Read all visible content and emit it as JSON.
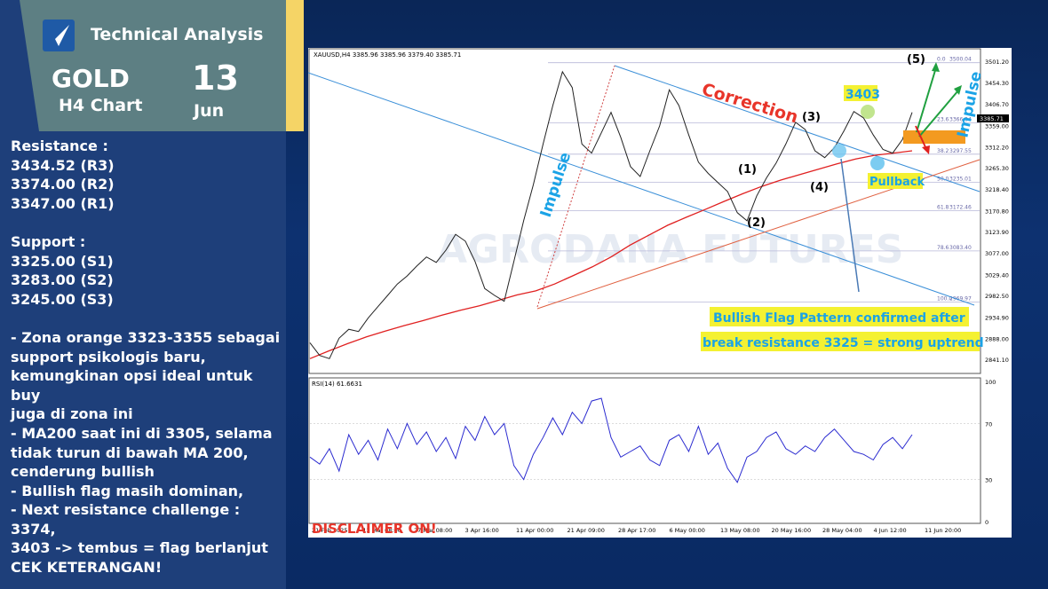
{
  "header": {
    "brand": "Technical Analysis",
    "symbol": "GOLD",
    "timeframe": "H4 Chart",
    "day": "13",
    "month": "Jun"
  },
  "notes": {
    "resistance_title": "Resistance :",
    "resistance": [
      "3434.52 (R3)",
      "3374.00 (R2)",
      "3347.00 (R1)"
    ],
    "support_title": "Support :",
    "support": [
      "3325.00 (S1)",
      "3283.00 (S2)",
      "3245.00 (S3)"
    ],
    "bullets": [
      "- Zona orange 3323-3355 sebagai",
      "support psikologis baru,",
      "kemungkinan opsi ideal untuk buy",
      "juga di zona ini",
      "- MA200 saat ini di 3305, selama",
      "tidak turun di bawah MA 200,",
      "cenderung bullish",
      "- Bullish flag masih dominan,",
      "- Next resistance challenge : 3374,",
      "3403 -> tembus = flag berlanjut",
      "CEK KETERANGAN!"
    ]
  },
  "chart_data": {
    "type": "line",
    "symbol_header": "XAUUSD,H4  3385.96 3385.96 3379.40 3385.71",
    "indicator_header": "RSI(14) 61.6631",
    "watermark": "AGRODANA FUTURES",
    "price_axis": {
      "ylim": [
        2818,
        3525
      ],
      "ticks": [
        "3501.20",
        "3454.30",
        "3406.70",
        "3359.00",
        "3312.20",
        "3265.30",
        "3218.40",
        "3170.80",
        "3123.90",
        "3077.00",
        "3029.40",
        "2982.50",
        "2934.90",
        "2888.00",
        "2841.10"
      ],
      "current_price": "3385.71"
    },
    "rsi_axis": {
      "ylim": [
        0,
        100
      ],
      "ticks": [
        "100",
        "70",
        "30",
        "0"
      ]
    },
    "x_ticks": [
      "21 Feb 2025",
      "12 Mar 08:00",
      "27 Mar 08:00",
      "3 Apr 16:00",
      "11 Apr 00:00",
      "21 Apr 09:00",
      "28 Apr 17:00",
      "6 May 00:00",
      "13 May 08:00",
      "20 May 16:00",
      "28 May 04:00",
      "4 Jun 12:00",
      "11 Jun 20:00"
    ],
    "fibonacci": [
      {
        "level": "0.0",
        "price": "3500.04",
        "value": 3500.04
      },
      {
        "level": "23.6",
        "price": "3366.94",
        "value": 3366.94
      },
      {
        "level": "38.2",
        "price": "3297.55",
        "value": 3297.55
      },
      {
        "level": "50.0",
        "price": "3235.01",
        "value": 3235.01
      },
      {
        "level": "61.8",
        "price": "3172.46",
        "value": 3172.46
      },
      {
        "level": "78.6",
        "price": "3083.40",
        "value": 3083.4
      },
      {
        "level": "100.0",
        "price": "2969.97",
        "value": 2969.97
      }
    ],
    "price_series": [
      2880,
      2852,
      2845,
      2890,
      2910,
      2905,
      2935,
      2960,
      2985,
      3010,
      3028,
      3050,
      3070,
      3058,
      3085,
      3120,
      3105,
      3060,
      3000,
      2985,
      2972,
      3060,
      3150,
      3230,
      3320,
      3405,
      3480,
      3445,
      3320,
      3300,
      3345,
      3390,
      3335,
      3270,
      3248,
      3305,
      3360,
      3440,
      3405,
      3340,
      3280,
      3255,
      3235,
      3215,
      3168,
      3150,
      3205,
      3245,
      3278,
      3320,
      3368,
      3352,
      3305,
      3290,
      3312,
      3350,
      3392,
      3378,
      3340,
      3308,
      3300,
      3330,
      3390
    ],
    "ma200": [
      2845,
      2862,
      2878,
      2893,
      2906,
      2918,
      2929,
      2941,
      2952,
      2962,
      2974,
      2986,
      2995,
      3010,
      3029,
      3048,
      3070,
      3096,
      3118,
      3140,
      3158,
      3175,
      3193,
      3210,
      3226,
      3240,
      3252,
      3264,
      3276,
      3287,
      3295,
      3300,
      3305
    ],
    "rsi_series": [
      46,
      41,
      52,
      36,
      62,
      48,
      58,
      44,
      66,
      52,
      70,
      55,
      64,
      50,
      60,
      45,
      68,
      58,
      75,
      62,
      70,
      40,
      30,
      48,
      60,
      74,
      62,
      78,
      70,
      86,
      88,
      60,
      46,
      50,
      54,
      44,
      40,
      58,
      62,
      50,
      68,
      48,
      56,
      38,
      28,
      46,
      50,
      60,
      64,
      52,
      48,
      54,
      50,
      60,
      66,
      58,
      50,
      48,
      44,
      55,
      60,
      52,
      62
    ],
    "annotations": {
      "correction": "Correction",
      "impulse": "Impulse",
      "pullback": "Pullback",
      "price_3403": "3403",
      "wave1": "(1)",
      "wave2": "(2)",
      "wave3": "(3)",
      "wave4": "(4)",
      "wave5": "(5)",
      "flag_line1": "Bullish Flag Pattern confirmed after",
      "flag_line2": "break resistance 3325 = strong uptrend",
      "disclaimer": "DISCLAIMER ON!"
    },
    "colors": {
      "price": "#222222",
      "ma": "#e02020",
      "channel": "#3a8fd8",
      "rsi": "#2b2bd0",
      "fib": "#b8b8d8",
      "orange_zone": "#f39a20",
      "highlight": "#f4f132"
    }
  }
}
